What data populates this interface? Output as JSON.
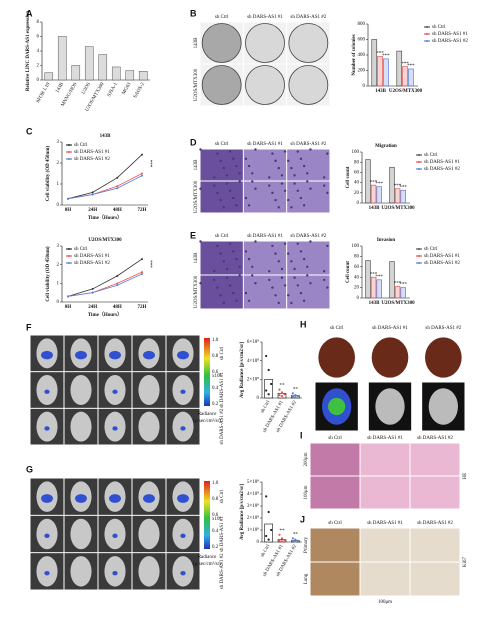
{
  "panel_letters": [
    "A",
    "B",
    "C",
    "D",
    "E",
    "F",
    "G",
    "H",
    "I",
    "J"
  ],
  "images": {
    "B": {
      "columns": [
        "sh Ctrl",
        "sh DARS-AS1 #1",
        "sh DARS-AS1 #2"
      ],
      "rows": [
        "143B",
        "U2OS/MTX300"
      ]
    },
    "D": {
      "columns": [
        "sh Ctrl",
        "sh DARS-AS1 #1",
        "sh DARS-AS1 #2"
      ],
      "rows": [
        "143B",
        "U2OS/MTX300"
      ]
    },
    "E": {
      "columns": [
        "sh Ctrl",
        "sh DARS-AS1 #1",
        "sh DARS-AS1 #2"
      ],
      "rows": [
        "143B",
        "U2OS/MTX300"
      ]
    },
    "F": {
      "rows": [
        "sh Ctrl",
        "sh DARS-AS1 #1",
        "sh DARS-AS1 #2"
      ]
    },
    "G": {
      "rows": [
        "sh Ctrl",
        "sh DARS-AS1 #1",
        "sh DARS-AS1 #2"
      ]
    },
    "H": {
      "columns": [
        "sh Ctrl",
        "sh DARS-AS1 #1",
        "sh DARS-AS1 #2"
      ]
    },
    "I": {
      "columns": [
        "sh Ctrl",
        "sh DARS-AS1 #1",
        "sh DARS-AS1 #2"
      ],
      "rows": [
        "200μm",
        "100μm"
      ],
      "stain": "HE"
    },
    "J": {
      "columns": [
        "sh Ctrl",
        "sh DARS-AS1 #1",
        "sh DARS-AS1 #2"
      ],
      "rows": [
        "Primary",
        "Lung"
      ],
      "stain": "Ki67",
      "scale": "100μm"
    }
  },
  "colorbars": [
    {
      "ticks": [
        "1.0",
        "0.8",
        "0.6",
        "0.4",
        "0.2"
      ],
      "unit": "x10⁸",
      "label": "Radiance",
      "sublabel": "(p/sec/cm²/sr)"
    },
    {
      "ticks": [
        "1.0",
        "0.8",
        "0.6",
        "0.4",
        "0.2"
      ],
      "unit": "x10⁸",
      "label": "Radiance",
      "sublabel": "(p/sec/cm²/sr)"
    }
  ],
  "charts": [
    {
      "type": "bar",
      "ylabel": "Relative LINC DARS-AS1 expression",
      "categories": [
        "hFOB 1.19",
        "143B",
        "MNNG/HOS",
        "U2OS",
        "U2OS/MTX300",
        "SJSA-1",
        "MG63",
        "SAOS-2"
      ],
      "values": [
        1,
        6,
        2,
        4.6,
        3.5,
        1.8,
        1.3,
        1.2
      ],
      "color": "#dcdcdc",
      "ylim": [
        0,
        8
      ],
      "yticks": [
        0,
        2,
        4,
        6,
        8
      ]
    },
    {
      "type": "bar",
      "ylabel": "Number of colonies",
      "categories": [
        "143B",
        "U2OS/MTX300"
      ],
      "series": [
        {
          "name": "sh Ctrl",
          "color": "#555555",
          "values": [
            600,
            450
          ]
        },
        {
          "name": "sh DARS-AS1 #1",
          "color": "#e8534f",
          "values": [
            380,
            250
          ]
        },
        {
          "name": "sh DARS-AS1 #2",
          "color": "#5a7fd8",
          "values": [
            350,
            220
          ]
        }
      ],
      "ylim": [
        0,
        800
      ],
      "yticks": [
        0,
        200,
        400,
        600,
        800
      ],
      "annotation": "***"
    },
    {
      "type": "line",
      "title": "143B",
      "xlabel": "Time（Hours）",
      "ylabel": "Cell viability (OD 450nm)",
      "categories": [
        "0H",
        "24H",
        "48H",
        "72H"
      ],
      "series": [
        {
          "name": "sh Ctrl",
          "color": "#333333",
          "values": [
            0.3,
            0.6,
            1.3,
            2.4
          ]
        },
        {
          "name": "sh DARS-AS1 #1",
          "color": "#e8534f",
          "values": [
            0.3,
            0.5,
            0.9,
            1.5
          ]
        },
        {
          "name": "sh DARS-AS1 #2",
          "color": "#5a7fd8",
          "values": [
            0.3,
            0.5,
            0.8,
            1.4
          ]
        }
      ],
      "ylim": [
        0,
        3
      ],
      "yticks": [
        0,
        1,
        2,
        3
      ],
      "annotation": "***"
    },
    {
      "type": "line",
      "title": "U2OS/MTX300",
      "xlabel": "Time（Hours）",
      "ylabel": "Cell viability (OD 450nm)",
      "categories": [
        "0H",
        "24H",
        "48H",
        "72H"
      ],
      "series": [
        {
          "name": "sh Ctrl",
          "color": "#333333",
          "values": [
            0.3,
            0.7,
            1.4,
            2.3
          ]
        },
        {
          "name": "sh DARS-AS1 #1",
          "color": "#e8534f",
          "values": [
            0.3,
            0.5,
            1,
            1.6
          ]
        },
        {
          "name": "sh DARS-AS1 #2",
          "color": "#5a7fd8",
          "values": [
            0.3,
            0.5,
            0.9,
            1.5
          ]
        }
      ],
      "ylim": [
        0,
        3
      ],
      "yticks": [
        0,
        1,
        2,
        3
      ],
      "annotation": "***"
    },
    {
      "type": "bar",
      "title": "Migration",
      "ylabel": "Cell count",
      "categories": [
        "143B",
        "U2OS/MTX300"
      ],
      "series": [
        {
          "name": "sh Ctrl",
          "color": "#555555",
          "values": [
            85,
            70
          ]
        },
        {
          "name": "sh DARS-AS1 #1",
          "color": "#e8534f",
          "values": [
            35,
            28
          ]
        },
        {
          "name": "sh DARS-AS1 #2",
          "color": "#5a7fd8",
          "values": [
            32,
            25
          ]
        }
      ],
      "ylim": [
        0,
        100
      ],
      "yticks": [
        0,
        20,
        40,
        60,
        80,
        100
      ],
      "annotation": "***"
    },
    {
      "type": "bar",
      "title": "Invasion",
      "ylabel": "Cell count",
      "categories": [
        "143B",
        "U2OS/MTX300"
      ],
      "series": [
        {
          "name": "sh Ctrl",
          "color": "#555555",
          "values": [
            72,
            70
          ]
        },
        {
          "name": "sh DARS-AS1 #1",
          "color": "#e8534f",
          "values": [
            40,
            22
          ]
        },
        {
          "name": "sh DARS-AS1 #2",
          "color": "#5a7fd8",
          "values": [
            35,
            20
          ]
        }
      ],
      "ylim": [
        0,
        100
      ],
      "yticks": [
        0,
        20,
        40,
        60,
        80,
        100
      ],
      "annotation": "***"
    },
    {
      "type": "dot",
      "ylabel": "Avg Radiance [p/s/cm2/sr]",
      "categories": [
        "sh Ctrl",
        "sh DARS-AS1 #1",
        "sh DARS-AS1 #2"
      ],
      "colors": [
        "#222222",
        "#e8534f",
        "#5a7fd8"
      ],
      "values": [
        200000000,
        50000000,
        25000000
      ],
      "points": [
        [
          450000000,
          300000000,
          150000000,
          80000000,
          40000000
        ],
        [
          90000000,
          60000000,
          40000000,
          30000000,
          20000000
        ],
        [
          50000000,
          30000000,
          20000000,
          15000000,
          10000000
        ]
      ],
      "ylim": [
        0,
        600000000
      ],
      "yticks": [
        0,
        {
          "value": 200000000,
          "label": "2×10⁸"
        },
        {
          "value": 400000000,
          "label": "4×10⁸"
        },
        {
          "value": 600000000,
          "label": "6×10⁸"
        }
      ],
      "annotation": "**"
    },
    {
      "type": "dot",
      "ylabel": "Avg Radiance [p/s/cm2/sr]",
      "categories": [
        "sh Ctrl",
        "sh DARS-AS1 #1",
        "sh DARS-AS1 #2"
      ],
      "colors": [
        "#222222",
        "#e8534f",
        "#5a7fd8"
      ],
      "values": [
        150000000,
        20000000,
        12000000
      ],
      "points": [
        [
          380000000,
          250000000,
          100000000,
          50000000,
          20000000
        ],
        [
          60000000,
          30000000,
          15000000,
          10000000,
          5000000
        ],
        [
          30000000,
          20000000,
          10000000,
          8000000,
          4000000
        ]
      ],
      "ylim": [
        0,
        500000000
      ],
      "yticks": [
        0,
        {
          "value": 100000000,
          "label": "1×10⁸"
        },
        {
          "value": 200000000,
          "label": "2×10⁸"
        },
        {
          "value": 300000000,
          "label": "3×10⁸"
        },
        {
          "value": 400000000,
          "label": "4×10⁸"
        },
        {
          "value": 500000000,
          "label": "5×10⁸"
        }
      ],
      "annotation": "**"
    }
  ]
}
